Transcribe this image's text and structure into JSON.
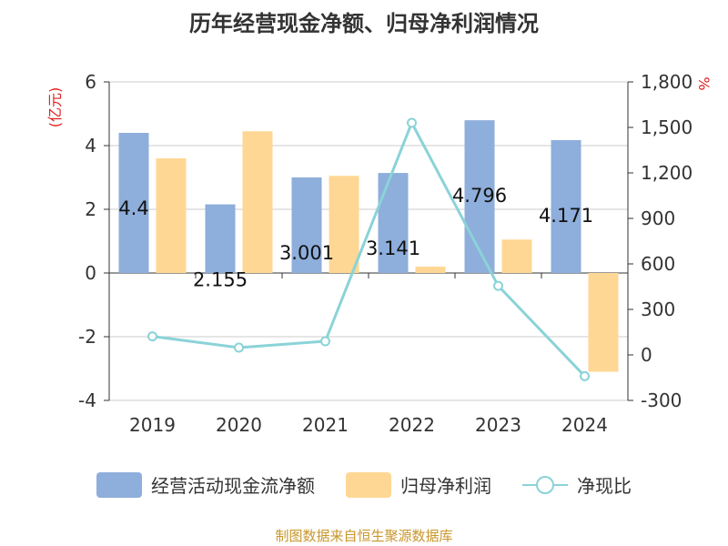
{
  "title": "历年经营现金净额、归母净利润情况",
  "source": "制图数据来自恒生聚源数据库",
  "chart_data": {
    "type": "bar",
    "categories": [
      "2019",
      "2020",
      "2021",
      "2022",
      "2023",
      "2024"
    ],
    "series": [
      {
        "name": "经营活动现金流净额",
        "type": "bar",
        "axis": "left",
        "color": "#8eaedb",
        "values": [
          4.4,
          2.155,
          3.001,
          3.141,
          4.796,
          4.171
        ],
        "labels": [
          "4.4",
          "2.155",
          "3.001",
          "3.141",
          "4.796",
          "4.171"
        ]
      },
      {
        "name": "归母净利润",
        "type": "bar",
        "axis": "left",
        "color": "#ffd794",
        "values": [
          3.6,
          4.45,
          3.05,
          0.2,
          1.05,
          -3.1
        ]
      },
      {
        "name": "净现比",
        "type": "line",
        "axis": "right",
        "color": "#8ad3d8",
        "values": [
          122,
          48,
          90,
          1530,
          455,
          -140
        ]
      }
    ],
    "y_left": {
      "label": "(亿元)",
      "min": -4,
      "max": 6,
      "ticks": [
        6,
        4,
        2,
        0,
        -2,
        -4
      ]
    },
    "y_right": {
      "unit": "%",
      "min": -300,
      "max": 1800,
      "ticks": [
        "1,800",
        "1,500",
        "1,200",
        "900",
        "600",
        "300",
        "0",
        "-300"
      ],
      "tick_values": [
        1800,
        1500,
        1200,
        900,
        600,
        300,
        0,
        -300
      ]
    },
    "grid": true,
    "legend": "bottom"
  }
}
